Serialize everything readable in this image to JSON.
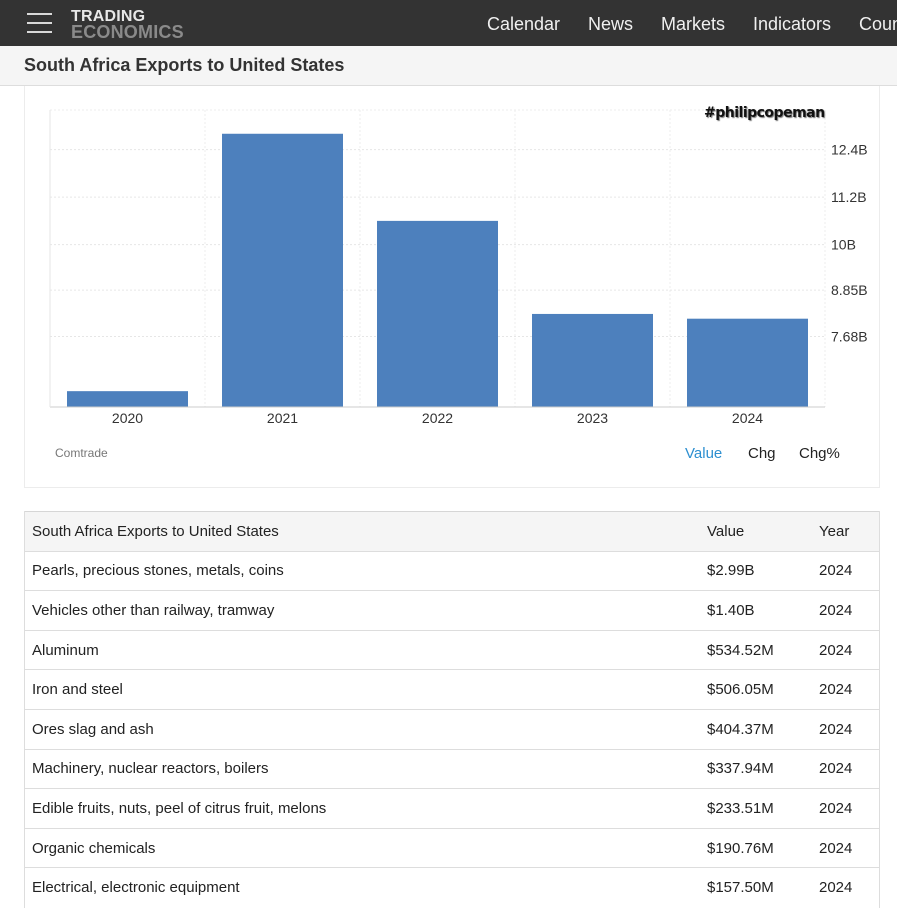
{
  "nav": {
    "logo_top": "TRADING",
    "logo_bottom": "ECONOMICS",
    "links": [
      "Calendar",
      "News",
      "Markets",
      "Indicators",
      "Countries"
    ]
  },
  "page_title": "South Africa Exports to United States",
  "chart": {
    "watermark": "#philipcopeman",
    "source": "Comtrade",
    "tabs": [
      "Value",
      "Chg",
      "Chg%"
    ],
    "active_tab": "Value",
    "bar_color": "#4d80bd"
  },
  "chart_data": {
    "type": "bar",
    "categories": [
      "2020",
      "2021",
      "2022",
      "2023",
      "2024"
    ],
    "values": [
      6.3,
      12.8,
      10.6,
      8.25,
      8.13
    ],
    "y_ticks": [
      {
        "value": 7.68,
        "label": "7.68B"
      },
      {
        "value": 8.85,
        "label": "8.85B"
      },
      {
        "value": 10.0,
        "label": "10B"
      },
      {
        "value": 11.2,
        "label": "11.2B"
      },
      {
        "value": 12.4,
        "label": "12.4B"
      }
    ],
    "ylim": [
      5.9,
      13.4
    ],
    "unit": "billion USD",
    "grid": true,
    "y_axis_side": "right"
  },
  "table": {
    "headers": [
      "South Africa Exports to United States",
      "Value",
      "Year"
    ],
    "rows": [
      [
        "Pearls, precious stones, metals, coins",
        "$2.99B",
        "2024"
      ],
      [
        "Vehicles other than railway, tramway",
        "$1.40B",
        "2024"
      ],
      [
        "Aluminum",
        "$534.52M",
        "2024"
      ],
      [
        "Iron and steel",
        "$506.05M",
        "2024"
      ],
      [
        "Ores slag and ash",
        "$404.37M",
        "2024"
      ],
      [
        "Machinery, nuclear reactors, boilers",
        "$337.94M",
        "2024"
      ],
      [
        "Edible fruits, nuts, peel of citrus fruit, melons",
        "$233.51M",
        "2024"
      ],
      [
        "Organic chemicals",
        "$190.76M",
        "2024"
      ],
      [
        "Electrical, electronic equipment",
        "$157.50M",
        "2024"
      ]
    ]
  }
}
